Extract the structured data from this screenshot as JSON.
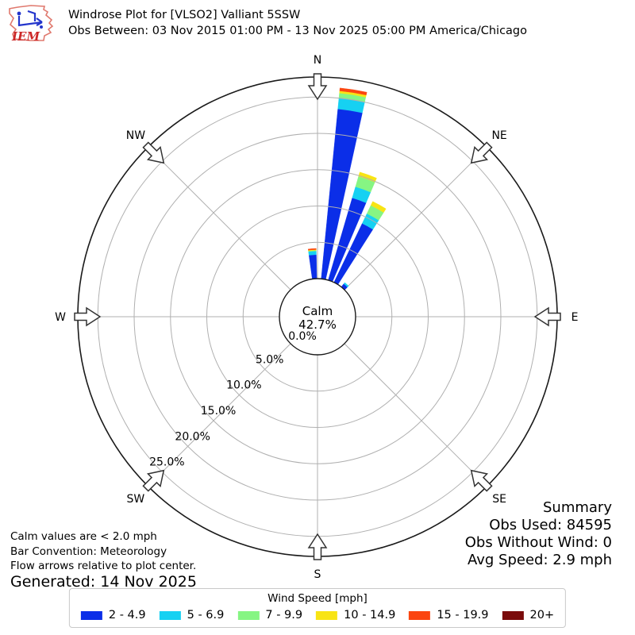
{
  "header": {
    "logo_text": "IEM",
    "title": "Windrose Plot for [VLSO2] Valliant 5SSW",
    "subtitle": "Obs Between: 03 Nov 2015 01:00 PM - 13 Nov 2025 05:00 PM America/Chicago"
  },
  "summary": {
    "heading": "Summary",
    "obs_used": "Obs Used: 84595",
    "obs_without_wind": "Obs Without Wind: 0",
    "avg_speed": "Avg Speed: 2.9 mph"
  },
  "annotations": {
    "calm_note": "Calm values are < 2.0 mph",
    "bar_convention": "Bar Convention: Meteorology",
    "flow_note": "Flow arrows relative to plot center.",
    "generated": "Generated: 14 Nov 2025"
  },
  "legend": {
    "title": "Wind Speed [mph]",
    "items": [
      {
        "label": "2 - 4.9",
        "color": "#0b2ee8"
      },
      {
        "label": "5 - 6.9",
        "color": "#16d1f2"
      },
      {
        "label": "7 - 9.9",
        "color": "#86f583"
      },
      {
        "label": "10 - 14.9",
        "color": "#f8e414"
      },
      {
        "label": "15 - 19.9",
        "color": "#fb4510"
      },
      {
        "label": "20+",
        "color": "#7a0b0b"
      }
    ]
  },
  "chart_data": {
    "type": "windrose-polar-bar",
    "title": "Windrose Plot for [VLSO2] Valliant 5SSW",
    "units": "percent frequency",
    "calm_percent": 42.7,
    "center_labels": {
      "calm": "Calm",
      "calm_value": "42.7%",
      "zero_label": "0.0%"
    },
    "ring_values": [
      5,
      10,
      15,
      20,
      25
    ],
    "ring_labels": [
      "5.0%",
      "10.0%",
      "15.0%",
      "20.0%",
      "25.0%"
    ],
    "rmax_pct": 27.8,
    "compass_labels": [
      "N",
      "NE",
      "E",
      "SE",
      "S",
      "SW",
      "W",
      "NW"
    ],
    "speed_bins": [
      "2 - 4.9",
      "5 - 6.9",
      "7 - 9.9",
      "10 - 14.9",
      "15 - 19.9",
      "20+"
    ],
    "colors": [
      "#0b2ee8",
      "#16d1f2",
      "#86f583",
      "#f8e414",
      "#fb4510",
      "#7a0b0b"
    ],
    "bar_width_deg": 6.8,
    "bars": [
      {
        "dir_deg": 355.5,
        "values": [
          3.3,
          0.5,
          0.1,
          0.1,
          0.15,
          0
        ]
      },
      {
        "dir_deg": 9.0,
        "values": [
          23.5,
          1.5,
          0.7,
          0.3,
          0.4,
          0
        ]
      },
      {
        "dir_deg": 19.7,
        "values": [
          11.8,
          1.6,
          1.5,
          0.6,
          0,
          0
        ]
      },
      {
        "dir_deg": 29.0,
        "values": [
          9.0,
          1.5,
          1.25,
          0.6,
          0,
          0
        ]
      },
      {
        "dir_deg": 42.0,
        "values": [
          0.55,
          0.22,
          0,
          0,
          0,
          0
        ]
      }
    ],
    "grid": "on",
    "legend_position": "bottom"
  }
}
